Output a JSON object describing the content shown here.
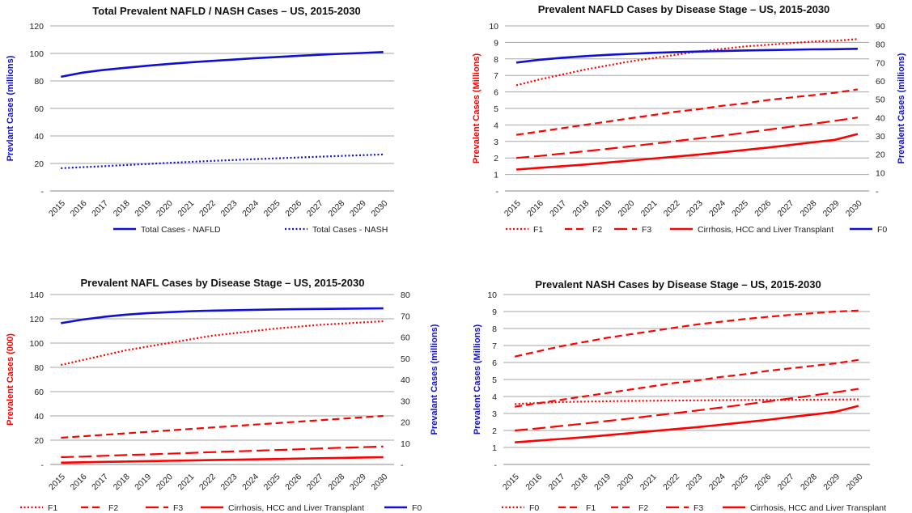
{
  "colors": {
    "red": "#ff0000",
    "blue": "#1010d0",
    "grid": "#a6a6a6",
    "axis": "#888888"
  },
  "chart_data": [
    {
      "type": "line",
      "title": "Total Prevalent NAFLD / NASH Cases – US, 2015-2030",
      "x": [
        "2015",
        "2016",
        "2017",
        "2018",
        "2019",
        "2020",
        "2021",
        "2022",
        "2023",
        "2024",
        "2025",
        "2026",
        "2027",
        "2028",
        "2029",
        "2030"
      ],
      "ylabel": "Prevlant Cases (millions)",
      "ylim": [
        0,
        120
      ],
      "yticks": [
        "-",
        "20",
        "40",
        "60",
        "80",
        "100",
        "120"
      ],
      "grid": true,
      "legend": "bottom",
      "series": [
        {
          "name": "Total Cases - NAFLD",
          "color": "#1010d0",
          "style": "solid",
          "axis": "left",
          "values": [
            83,
            86,
            88,
            89.5,
            91,
            92.3,
            93.5,
            94.5,
            95.5,
            96.5,
            97.3,
            98.2,
            99,
            99.7,
            100.3,
            101
          ]
        },
        {
          "name": "Total Cases - NASH",
          "color": "#1010d0",
          "style": "dotted",
          "axis": "left",
          "values": [
            16.5,
            17.3,
            18,
            18.8,
            19.6,
            20.4,
            21.1,
            21.8,
            22.5,
            23.1,
            23.7,
            24.3,
            24.9,
            25.5,
            26,
            26.5
          ]
        }
      ]
    },
    {
      "type": "line",
      "title": "Prevalent NAFLD Cases by Disease Stage – US, 2015-2030",
      "x": [
        "2015",
        "2016",
        "2017",
        "2018",
        "2019",
        "2020",
        "2021",
        "2022",
        "2023",
        "2024",
        "2025",
        "2026",
        "2027",
        "2028",
        "2029",
        "2030"
      ],
      "ylabel": "Prevalent Cases (Millions)",
      "ylabel_right": "Prevalent Cases (millions)",
      "ylim": [
        0,
        10
      ],
      "ylim_right": [
        0,
        90
      ],
      "yticks": [
        "-",
        "1",
        "2",
        "3",
        "4",
        "5",
        "6",
        "7",
        "8",
        "9",
        "10"
      ],
      "yticks_right": [
        "-",
        "10",
        "20",
        "30",
        "40",
        "50",
        "60",
        "70",
        "80",
        "90"
      ],
      "grid": true,
      "legend": "bottom",
      "series": [
        {
          "name": "F1",
          "color": "#ff0000",
          "style": "dotted",
          "axis": "left",
          "values": [
            6.4,
            6.75,
            7.05,
            7.35,
            7.6,
            7.85,
            8.05,
            8.25,
            8.45,
            8.6,
            8.75,
            8.85,
            8.95,
            9.05,
            9.1,
            9.2
          ]
        },
        {
          "name": "F2",
          "color": "#ff0000",
          "style": "dash",
          "axis": "left",
          "values": [
            3.4,
            3.6,
            3.8,
            4.0,
            4.2,
            4.4,
            4.6,
            4.8,
            4.95,
            5.15,
            5.3,
            5.5,
            5.65,
            5.8,
            5.95,
            6.15
          ]
        },
        {
          "name": "F3",
          "color": "#ff0000",
          "style": "longdash",
          "axis": "left",
          "values": [
            2.0,
            2.12,
            2.26,
            2.4,
            2.55,
            2.7,
            2.86,
            3.02,
            3.18,
            3.35,
            3.52,
            3.7,
            3.88,
            4.06,
            4.25,
            4.45
          ]
        },
        {
          "name": "Cirrhosis, HCC and Liver Transplant",
          "color": "#ff0000",
          "style": "solid",
          "axis": "left",
          "values": [
            1.3,
            1.4,
            1.5,
            1.6,
            1.72,
            1.84,
            1.96,
            2.08,
            2.2,
            2.34,
            2.48,
            2.62,
            2.78,
            2.94,
            3.1,
            3.45
          ]
        },
        {
          "name": "F0",
          "color": "#1010d0",
          "style": "solid",
          "axis": "right",
          "values": [
            70,
            71.5,
            72.6,
            73.5,
            74.2,
            74.8,
            75.3,
            75.7,
            76,
            76.3,
            76.6,
            76.8,
            77,
            77.2,
            77.3,
            77.5
          ]
        }
      ]
    },
    {
      "type": "line",
      "title": "Prevalent NAFL Cases by Disease Stage  – US, 2015-2030",
      "x": [
        "2015",
        "2016",
        "2017",
        "2018",
        "2019",
        "2020",
        "2021",
        "2022",
        "2023",
        "2024",
        "2025",
        "2026",
        "2027",
        "2028",
        "2029",
        "2030"
      ],
      "ylabel": "Prevalent Cases (000)",
      "ylabel_right": "Prevalant Cases (millions)",
      "ylim": [
        0,
        140
      ],
      "ylim_right": [
        0,
        80
      ],
      "yticks": [
        "-",
        "20",
        "40",
        "60",
        "80",
        "100",
        "120",
        "140"
      ],
      "yticks_right": [
        "-",
        "10",
        "20",
        "30",
        "40",
        "50",
        "60",
        "70",
        "80"
      ],
      "grid": true,
      "legend": "bottom",
      "series": [
        {
          "name": "F1",
          "color": "#ff0000",
          "style": "dotted",
          "axis": "left",
          "values": [
            82,
            86,
            90,
            94,
            97,
            100,
            103,
            106,
            108,
            110,
            112,
            113.5,
            115,
            116,
            117,
            118
          ]
        },
        {
          "name": "F2",
          "color": "#ff0000",
          "style": "dash",
          "axis": "left",
          "values": [
            22,
            23.2,
            24.4,
            25.6,
            26.8,
            28,
            29.2,
            30.4,
            31.6,
            32.8,
            34,
            35.2,
            36.4,
            37.6,
            38.8,
            40
          ]
        },
        {
          "name": "F3",
          "color": "#ff0000",
          "style": "longdash",
          "axis": "left",
          "values": [
            6,
            6.5,
            7.1,
            7.7,
            8.3,
            8.9,
            9.5,
            10.1,
            10.7,
            11.3,
            11.9,
            12.5,
            13.1,
            13.7,
            14.2,
            14.8
          ]
        },
        {
          "name": "Cirrhosis, HCC and Liver Transplant",
          "color": "#ff0000",
          "style": "solid",
          "axis": "left",
          "values": [
            1.5,
            1.8,
            2.1,
            2.4,
            2.7,
            3.0,
            3.3,
            3.6,
            3.9,
            4.2,
            4.5,
            4.8,
            5.1,
            5.4,
            5.7,
            6.0
          ]
        },
        {
          "name": "F0",
          "color": "#1010d0",
          "style": "solid",
          "axis": "right",
          "values": [
            66.5,
            68.2,
            69.5,
            70.5,
            71.2,
            71.7,
            72.1,
            72.4,
            72.6,
            72.8,
            73,
            73.1,
            73.2,
            73.3,
            73.4,
            73.5
          ]
        }
      ]
    },
    {
      "type": "line",
      "title": "Prevalent NASH Cases by Disease Stage – US, 2015-2030",
      "x": [
        "2015",
        "2016",
        "2017",
        "2018",
        "2019",
        "2020",
        "2021",
        "2022",
        "2023",
        "2024",
        "2025",
        "2026",
        "2027",
        "2028",
        "2029",
        "2030"
      ],
      "ylabel": "Prevalent Cases (Millions)",
      "ylim": [
        0,
        10
      ],
      "yticks": [
        "-",
        "1",
        "2",
        "3",
        "4",
        "5",
        "6",
        "7",
        "8",
        "9",
        "10"
      ],
      "grid": true,
      "legend": "bottom",
      "series": [
        {
          "name": "F0",
          "color": "#ff0000",
          "style": "dotted",
          "axis": "left",
          "values": [
            3.55,
            3.62,
            3.67,
            3.7,
            3.72,
            3.74,
            3.75,
            3.76,
            3.77,
            3.78,
            3.79,
            3.8,
            3.8,
            3.81,
            3.82,
            3.83
          ]
        },
        {
          "name": "F1",
          "color": "#ff0000",
          "style": "dash",
          "axis": "left",
          "values": [
            6.35,
            6.65,
            6.95,
            7.2,
            7.45,
            7.65,
            7.85,
            8.05,
            8.25,
            8.4,
            8.55,
            8.68,
            8.8,
            8.9,
            9.0,
            9.05
          ]
        },
        {
          "name": "F2",
          "color": "#ff0000",
          "style": "dash",
          "axis": "left",
          "values": [
            3.4,
            3.6,
            3.8,
            4.0,
            4.2,
            4.4,
            4.6,
            4.8,
            4.95,
            5.15,
            5.3,
            5.5,
            5.65,
            5.8,
            5.95,
            6.15
          ]
        },
        {
          "name": "F3",
          "color": "#ff0000",
          "style": "longdash",
          "axis": "left",
          "values": [
            2.0,
            2.12,
            2.26,
            2.4,
            2.55,
            2.7,
            2.86,
            3.02,
            3.18,
            3.35,
            3.52,
            3.7,
            3.88,
            4.06,
            4.25,
            4.45
          ]
        },
        {
          "name": "Cirrhosis, HCC and Liver Transplant",
          "color": "#ff0000",
          "style": "solid",
          "axis": "left",
          "values": [
            1.3,
            1.4,
            1.5,
            1.6,
            1.72,
            1.84,
            1.96,
            2.08,
            2.2,
            2.34,
            2.48,
            2.62,
            2.78,
            2.94,
            3.1,
            3.45
          ]
        }
      ]
    }
  ]
}
